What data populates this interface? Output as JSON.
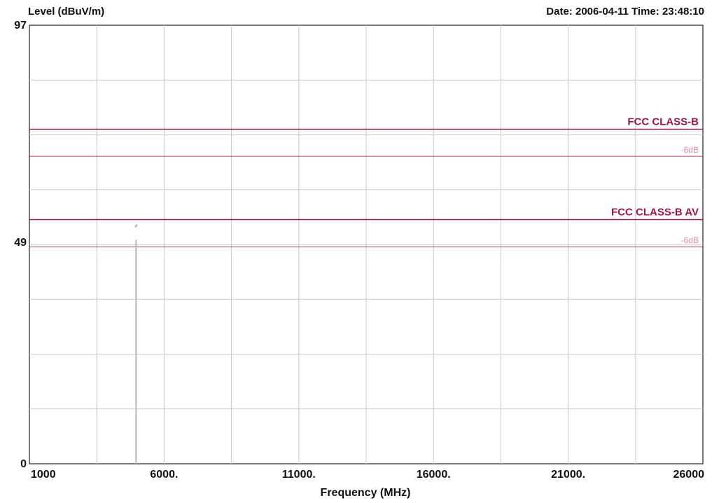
{
  "header": {
    "ylabel": "Level (dBuV/m)",
    "datetime": "Date: 2006-04-11  Time: 23:48:10"
  },
  "chart_data": {
    "type": "line",
    "title": "",
    "xlabel": "Frequency (MHz)",
    "ylabel": "Level (dBuV/m)",
    "xlim": [
      1000,
      26000
    ],
    "ylim": [
      0,
      97
    ],
    "x_tick_values": [
      1000,
      6000,
      11000,
      16000,
      21000,
      26000
    ],
    "x_tick_labels": [
      "1000",
      "6000.",
      "11000.",
      "16000.",
      "21000.",
      "26000"
    ],
    "y_tick_values": [
      0,
      49,
      97
    ],
    "y_tick_labels": [
      "0",
      "49",
      "97"
    ],
    "grid": true,
    "limit_lines": [
      {
        "name": "FCC CLASS-B",
        "value": 74,
        "color": "#a0183c",
        "margin_label": "-6dB",
        "margin_value": 68
      },
      {
        "name": "FCC CLASS-B  AV",
        "value": 54,
        "color": "#a0183c",
        "margin_label": "-6dB",
        "margin_value": 48
      }
    ],
    "series": [
      {
        "name": "",
        "color": "#b8b8b8",
        "x": [
          4960,
          4960
        ],
        "y": [
          0,
          49.5
        ]
      }
    ],
    "markers": [
      {
        "label": "*",
        "x": 4960,
        "y": 52.5
      }
    ]
  }
}
